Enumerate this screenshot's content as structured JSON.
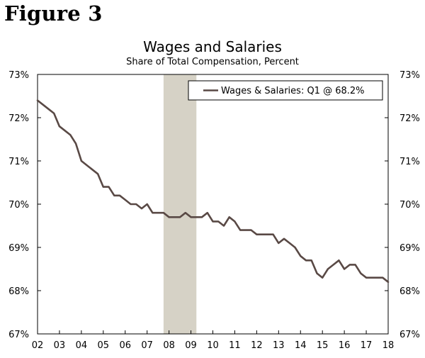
{
  "figure_label": "Figure 3",
  "chart_data": {
    "type": "line",
    "title": "Wages and Salaries",
    "subtitle": "Share of Total Compensation, Percent",
    "xlabel": "",
    "ylabel": "",
    "x_tick_labels": [
      "02",
      "03",
      "04",
      "05",
      "06",
      "07",
      "08",
      "09",
      "10",
      "11",
      "12",
      "13",
      "14",
      "15",
      "16",
      "17",
      "18"
    ],
    "x_range": [
      2002.0,
      2018.0
    ],
    "y_tick_labels": [
      "67%",
      "68%",
      "69%",
      "70%",
      "71%",
      "72%",
      "73%"
    ],
    "y_ticks": [
      67,
      68,
      69,
      70,
      71,
      72,
      73
    ],
    "ylim": [
      67,
      73
    ],
    "grid": false,
    "legend_position": "top-right",
    "recession_shading": {
      "start": 2007.75,
      "end": 2009.25,
      "color": "#d6d2c6"
    },
    "series": [
      {
        "name": "Wages & Salaries: Q1 @ 68.2%",
        "color": "#594945",
        "x": [
          2002.0,
          2002.25,
          2002.5,
          2002.75,
          2003.0,
          2003.25,
          2003.5,
          2003.75,
          2004.0,
          2004.25,
          2004.5,
          2004.75,
          2005.0,
          2005.25,
          2005.5,
          2005.75,
          2006.0,
          2006.25,
          2006.5,
          2006.75,
          2007.0,
          2007.25,
          2007.5,
          2007.75,
          2008.0,
          2008.25,
          2008.5,
          2008.75,
          2009.0,
          2009.25,
          2009.5,
          2009.75,
          2010.0,
          2010.25,
          2010.5,
          2010.75,
          2011.0,
          2011.25,
          2011.5,
          2011.75,
          2012.0,
          2012.25,
          2012.5,
          2012.75,
          2013.0,
          2013.25,
          2013.5,
          2013.75,
          2014.0,
          2014.25,
          2014.5,
          2014.75,
          2015.0,
          2015.25,
          2015.5,
          2015.75,
          2016.0,
          2016.25,
          2016.5,
          2016.75,
          2017.0,
          2017.25,
          2017.5,
          2017.75,
          2018.0
        ],
        "values": [
          72.4,
          72.3,
          72.2,
          72.1,
          71.8,
          71.7,
          71.6,
          71.4,
          71.0,
          70.9,
          70.8,
          70.7,
          70.4,
          70.4,
          70.2,
          70.2,
          70.1,
          70.0,
          70.0,
          69.9,
          70.0,
          69.8,
          69.8,
          69.8,
          69.7,
          69.7,
          69.7,
          69.8,
          69.7,
          69.7,
          69.7,
          69.8,
          69.6,
          69.6,
          69.5,
          69.7,
          69.6,
          69.4,
          69.4,
          69.4,
          69.3,
          69.3,
          69.3,
          69.3,
          69.1,
          69.2,
          69.1,
          69.0,
          68.8,
          68.7,
          68.7,
          68.4,
          68.3,
          68.5,
          68.6,
          68.7,
          68.5,
          68.6,
          68.6,
          68.4,
          68.3,
          68.3,
          68.3,
          68.3,
          68.2
        ]
      }
    ]
  }
}
